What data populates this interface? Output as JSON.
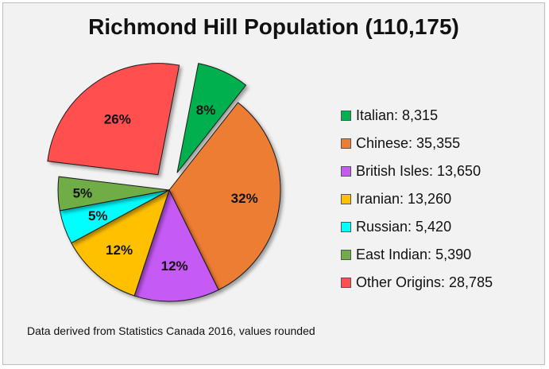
{
  "chart_data": {
    "type": "pie",
    "title": "Richmond Hill Population (110,175)",
    "total": 110175,
    "slices": [
      {
        "name": "Italian",
        "value": 8315,
        "label": "8%",
        "legend": "Italian: 8,315",
        "color": "#00b050",
        "exploded": true
      },
      {
        "name": "Chinese",
        "value": 35355,
        "label": "32%",
        "legend": "Chinese: 35,355",
        "color": "#ed7d31",
        "exploded": false
      },
      {
        "name": "British Isles",
        "value": 13650,
        "label": "12%",
        "legend": "British Isles: 13,650",
        "color": "#c55af5",
        "exploded": false
      },
      {
        "name": "Iranian",
        "value": 13260,
        "label": "12%",
        "legend": "Iranian: 13,260",
        "color": "#ffc000",
        "exploded": false
      },
      {
        "name": "Russian",
        "value": 5420,
        "label": "5%",
        "legend": "Russian: 5,420",
        "color": "#00ffff",
        "exploded": false
      },
      {
        "name": "East Indian",
        "value": 5390,
        "label": "5%",
        "legend": "East Indian: 5,390",
        "color": "#70ad47",
        "exploded": false
      },
      {
        "name": "Other Origins",
        "value": 28785,
        "label": "26%",
        "legend": "Other Origins: 28,785",
        "color": "#ff5050",
        "exploded": true
      }
    ],
    "legend_position": "right",
    "source": "Data derived from Statistics Canada 2016, values rounded"
  }
}
